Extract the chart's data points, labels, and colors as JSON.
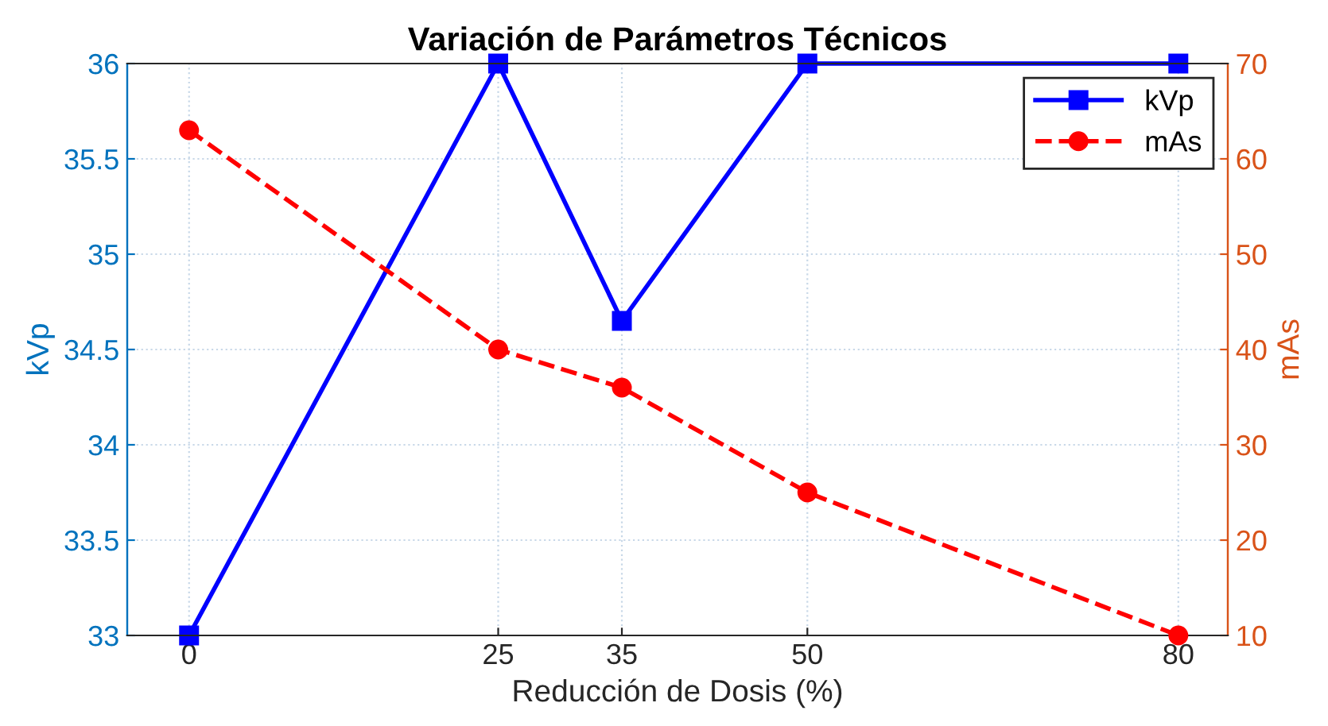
{
  "chart_data": {
    "type": "line",
    "title": "Variación de Parámetros Técnicos",
    "xlabel": "Reducción de Dosis (%)",
    "ylabel": "kVp",
    "y2label": "mAs",
    "x": [
      0,
      25,
      35,
      50,
      80
    ],
    "series": [
      {
        "name": "kVp",
        "color": "#0000ff",
        "values": [
          33,
          36,
          34.65,
          36,
          36
        ],
        "marker": "square",
        "line_style": "solid"
      },
      {
        "name": "mAs",
        "color": "#ff0000",
        "values": [
          63,
          40,
          36,
          25,
          10
        ],
        "marker": "circle",
        "line_style": "dashed",
        "axis": "y2"
      }
    ],
    "xlim": [
      -5,
      84
    ],
    "xticks": [
      0,
      25,
      35,
      50,
      80
    ],
    "ylim": [
      33,
      36
    ],
    "yticks": [
      33,
      33.5,
      34,
      34.5,
      35,
      35.5,
      36
    ],
    "y2lim": [
      10,
      70
    ],
    "y2ticks": [
      10,
      20,
      30,
      40,
      50,
      60,
      70
    ],
    "grid": true,
    "legend": "top right"
  }
}
